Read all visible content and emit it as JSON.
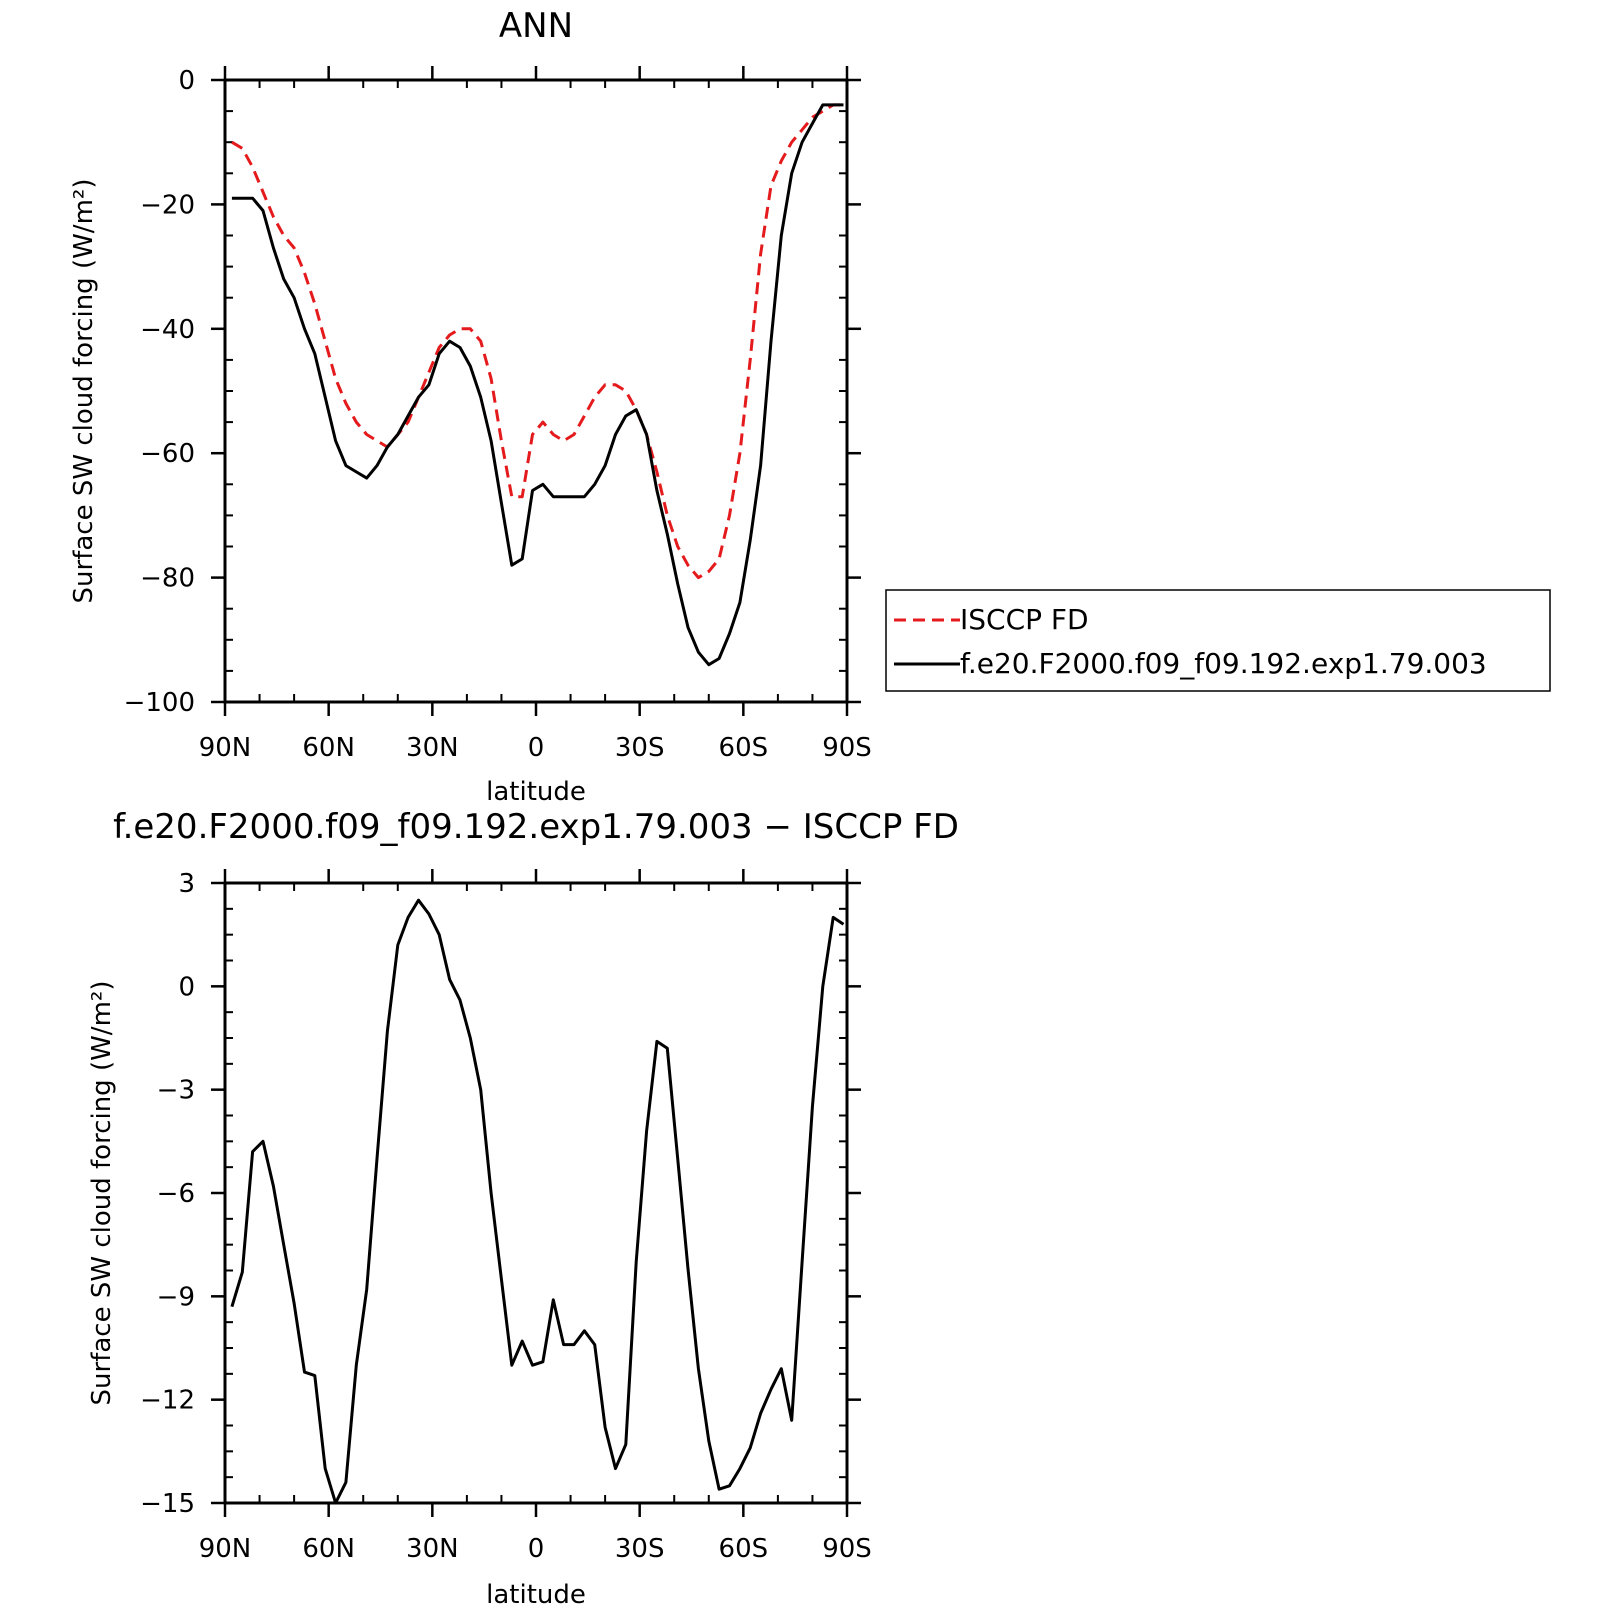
{
  "chart_data": [
    {
      "type": "line",
      "title": "ANN",
      "xlabel": "latitude",
      "ylabel": "Surface SW cloud forcing (W/m²)",
      "xlim": [
        90,
        -90
      ],
      "ylim": [
        -100,
        0
      ],
      "xticks": [
        90,
        60,
        30,
        0,
        -30,
        -60,
        -90
      ],
      "xtick_labels": [
        "90N",
        "60N",
        "30N",
        "0",
        "30S",
        "60S",
        "90S"
      ],
      "yticks": [
        0,
        -20,
        -40,
        -60,
        -80,
        -100
      ],
      "ytick_labels": [
        "0",
        "−20",
        "−40",
        "−60",
        "−80",
        "−100"
      ],
      "legend_position": "right",
      "series": [
        {
          "name": "ISCCP FD",
          "color": "#e41a1c",
          "dash": true,
          "x": [
            88,
            85,
            82,
            79,
            76,
            73,
            70,
            67,
            64,
            61,
            58,
            55,
            52,
            49,
            46,
            43,
            40,
            37,
            34,
            31,
            28,
            25,
            22,
            19,
            16,
            13,
            10,
            7,
            4,
            1,
            -2,
            -5,
            -8,
            -11,
            -14,
            -17,
            -20,
            -23,
            -26,
            -29,
            -32,
            -35,
            -38,
            -41,
            -44,
            -47,
            -50,
            -53,
            -56,
            -59,
            -62,
            -65,
            -68,
            -71,
            -74,
            -77,
            -80,
            -83,
            -86,
            -89
          ],
          "y": [
            -10,
            -11,
            -14,
            -18,
            -22,
            -25,
            -27,
            -31,
            -36,
            -42,
            -48,
            -52,
            -55,
            -57,
            -58,
            -59,
            -57,
            -55,
            -51,
            -47,
            -43,
            -41,
            -40,
            -40,
            -42,
            -48,
            -58,
            -67,
            -67,
            -57,
            -55,
            -57,
            -58,
            -57,
            -54,
            -51,
            -49,
            -49,
            -50,
            -53,
            -57,
            -63,
            -70,
            -75,
            -78,
            -80,
            -79,
            -77,
            -70,
            -60,
            -45,
            -28,
            -17,
            -13,
            -10,
            -8,
            -6,
            -5,
            -4,
            -4
          ]
        },
        {
          "name": "f.e20.F2000.f09_f09.192.exp1.79.003",
          "color": "#000000",
          "dash": false,
          "x": [
            88,
            85,
            82,
            79,
            76,
            73,
            70,
            67,
            64,
            61,
            58,
            55,
            52,
            49,
            46,
            43,
            40,
            37,
            34,
            31,
            28,
            25,
            22,
            19,
            16,
            13,
            10,
            7,
            4,
            1,
            -2,
            -5,
            -8,
            -11,
            -14,
            -17,
            -20,
            -23,
            -26,
            -29,
            -32,
            -35,
            -38,
            -41,
            -44,
            -47,
            -50,
            -53,
            -56,
            -59,
            -62,
            -65,
            -68,
            -71,
            -74,
            -77,
            -80,
            -83,
            -86,
            -89
          ],
          "y": [
            -19,
            -19,
            -19,
            -21,
            -27,
            -32,
            -35,
            -40,
            -44,
            -51,
            -58,
            -62,
            -63,
            -64,
            -62,
            -59,
            -57,
            -54,
            -51,
            -49,
            -44,
            -42,
            -43,
            -46,
            -51,
            -58,
            -68,
            -78,
            -77,
            -66,
            -65,
            -67,
            -67,
            -67,
            -67,
            -65,
            -62,
            -57,
            -54,
            -53,
            -57,
            -66,
            -73,
            -81,
            -88,
            -92,
            -94,
            -93,
            -89,
            -84,
            -74,
            -62,
            -42,
            -25,
            -15,
            -10,
            -7,
            -4,
            -4,
            -4
          ]
        }
      ]
    },
    {
      "type": "line",
      "title": "f.e20.F2000.f09_f09.192.exp1.79.003 − ISCCP FD",
      "xlabel": "latitude",
      "ylabel": "Surface SW cloud forcing (W/m²)",
      "xlim": [
        90,
        -90
      ],
      "ylim": [
        -15,
        3
      ],
      "xticks": [
        90,
        60,
        30,
        0,
        -30,
        -60,
        -90
      ],
      "xtick_labels": [
        "90N",
        "60N",
        "30N",
        "0",
        "30S",
        "60S",
        "90S"
      ],
      "yticks": [
        3,
        0,
        -3,
        -6,
        -9,
        -12,
        -15
      ],
      "ytick_labels": [
        "3",
        "0",
        "−3",
        "−6",
        "−9",
        "−12",
        "−15"
      ],
      "series": [
        {
          "color": "#000000",
          "dash": false,
          "x": [
            88,
            85,
            82,
            79,
            76,
            73,
            70,
            67,
            64,
            61,
            58,
            55,
            52,
            49,
            46,
            43,
            40,
            37,
            34,
            31,
            28,
            25,
            22,
            19,
            16,
            13,
            10,
            7,
            4,
            1,
            -2,
            -5,
            -8,
            -11,
            -14,
            -17,
            -20,
            -23,
            -26,
            -29,
            -32,
            -35,
            -38,
            -41,
            -44,
            -47,
            -50,
            -53,
            -56,
            -59,
            -62,
            -65,
            -68,
            -71,
            -74,
            -77,
            -80,
            -83,
            -86,
            -89
          ],
          "y": [
            -9.3,
            -8.3,
            -4.8,
            -4.5,
            -5.8,
            -7.5,
            -9.2,
            -11.2,
            -11.3,
            -14,
            -15,
            -14.4,
            -11,
            -8.8,
            -5,
            -1.3,
            1.2,
            2,
            2.5,
            2.1,
            1.5,
            0.2,
            -0.4,
            -1.5,
            -3,
            -6,
            -8.5,
            -11,
            -10.3,
            -11,
            -10.9,
            -9.1,
            -10.4,
            -10.4,
            -10,
            -10.4,
            -12.8,
            -14,
            -13.3,
            -8,
            -4.2,
            -1.6,
            -1.8,
            -5,
            -8.2,
            -11.1,
            -13.2,
            -14.6,
            -14.5,
            -14,
            -13.4,
            -12.4,
            -11.7,
            -11.1,
            -12.6,
            -8,
            -3.5,
            0,
            2,
            1.8
          ]
        }
      ]
    }
  ],
  "legend": {
    "entries": [
      "ISCCP FD",
      "f.e20.F2000.f09_f09.192.exp1.79.003"
    ]
  }
}
